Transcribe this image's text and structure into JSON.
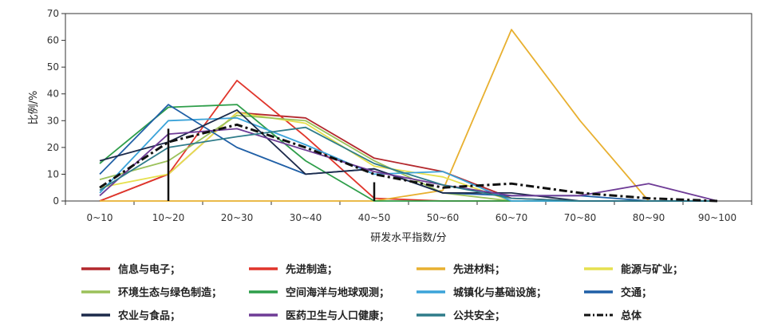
{
  "chart_data": {
    "type": "line",
    "title": "",
    "xlabel": "研发水平指数/分",
    "ylabel": "比例/%",
    "categories": [
      "0~10",
      "10~20",
      "20~30",
      "30~40",
      "40~50",
      "50~60",
      "60~70",
      "70~80",
      "80~90",
      "90~100"
    ],
    "ylim": [
      0,
      70
    ],
    "yticks": [
      0,
      10,
      20,
      30,
      40,
      50,
      60,
      70
    ],
    "grid": false,
    "legend_position": "bottom",
    "series": [
      {
        "name": "信息与电子；",
        "color": "#b3282d",
        "dash": "solid",
        "values": [
          0,
          10,
          33,
          31,
          16,
          11,
          1,
          0,
          0,
          0
        ]
      },
      {
        "name": "先进制造；",
        "color": "#e0352b",
        "dash": "solid",
        "values": [
          0,
          10,
          45,
          24,
          1,
          0,
          0,
          0,
          0,
          0
        ]
      },
      {
        "name": "先进材料；",
        "color": "#e8b030",
        "dash": "solid",
        "values": [
          0,
          0,
          0,
          0,
          0,
          4,
          64,
          30,
          0,
          0
        ]
      },
      {
        "name": "能源与矿业；",
        "color": "#e6e04f",
        "dash": "solid",
        "values": [
          5,
          10,
          33,
          29,
          13,
          9,
          0,
          0,
          0,
          0
        ]
      },
      {
        "name": "环境生态与绿色制造；",
        "color": "#9bc15a",
        "dash": "solid",
        "values": [
          8,
          15,
          32,
          30,
          15,
          3,
          0,
          0,
          0,
          0
        ]
      },
      {
        "name": "空间海洋与地球观测；",
        "color": "#2e9e4a",
        "dash": "solid",
        "values": [
          14,
          35,
          36,
          15,
          0,
          0,
          0,
          0,
          0,
          0
        ]
      },
      {
        "name": "城镇化与基础设施；",
        "color": "#3ba3d9",
        "dash": "solid",
        "values": [
          3,
          30,
          31,
          21,
          10,
          11,
          0,
          0,
          0,
          0
        ]
      },
      {
        "name": "交通；",
        "color": "#1f5fa6",
        "dash": "solid",
        "values": [
          10,
          36,
          20,
          10,
          12,
          3,
          2,
          2,
          0,
          0
        ]
      },
      {
        "name": "农业与食品；",
        "color": "#1c2a4a",
        "dash": "solid",
        "values": [
          15,
          22,
          34,
          10,
          12,
          3,
          3,
          0,
          0,
          0
        ]
      },
      {
        "name": "医药卫生与人口健康；",
        "color": "#6e3b96",
        "dash": "solid",
        "values": [
          2,
          25,
          27,
          19,
          11,
          6,
          2,
          2,
          6.5,
          0
        ]
      },
      {
        "name": "公共安全；",
        "color": "#2f7c8a",
        "dash": "solid",
        "values": [
          4,
          20,
          24,
          27.5,
          14,
          6,
          1,
          0,
          0,
          0
        ]
      },
      {
        "name": "总体",
        "color": "#111111",
        "dash": "dashdot",
        "values": [
          5,
          22,
          28.5,
          20,
          10,
          5,
          6.5,
          3,
          1,
          0
        ]
      }
    ],
    "annotations": [
      {
        "type": "vertical-marker",
        "x": 1.5,
        "y_from": 0,
        "y_to": 27,
        "color": "#111111"
      },
      {
        "type": "vertical-marker",
        "x": 4.5,
        "y_from": 0,
        "y_to": 7,
        "color": "#111111"
      }
    ]
  }
}
